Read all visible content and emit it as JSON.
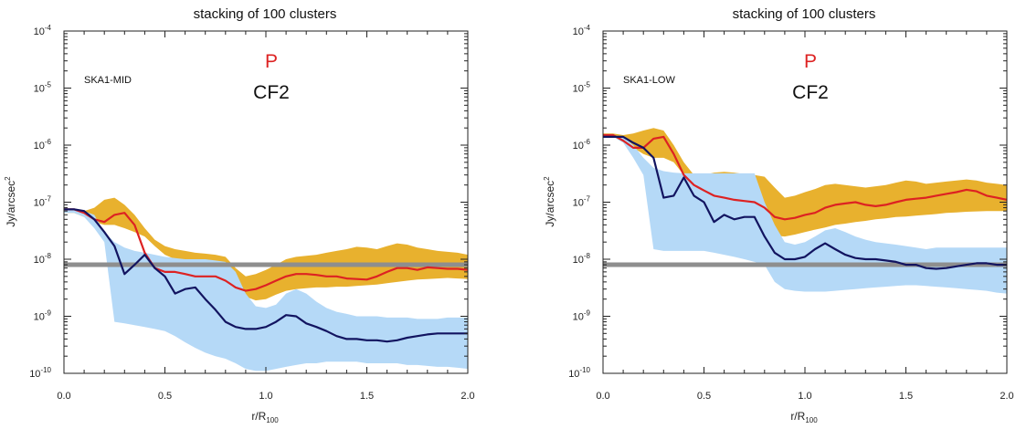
{
  "colors": {
    "model_band": "#E8B12E",
    "noise_band": "#B5D9F7",
    "polarized_line": "#DD2222",
    "total_line": "#121460",
    "threshold": "#8E8E8E",
    "annotation_p": "#DD2222"
  },
  "chart_data": [
    {
      "type": "line",
      "title": "stacking of 100 clusters",
      "instrument": "SKA1-MID",
      "annotation_p": "P",
      "annotation_cf": "CF2",
      "xlabel": "r/R",
      "xlabel_sub": "100",
      "ylabel": "Jy/arcsec",
      "ylabel_sup": "2",
      "xlim": [
        0,
        2
      ],
      "ylim": [
        1e-10,
        0.0001
      ],
      "yscale": "log",
      "xticks": [
        "0.0",
        "0.5",
        "1.0",
        "1.5",
        "2.0"
      ],
      "yticks": [
        {
          "base": "10",
          "exp": "-10"
        },
        {
          "base": "10",
          "exp": "-9"
        },
        {
          "base": "10",
          "exp": "-8"
        },
        {
          "base": "10",
          "exp": "-7"
        },
        {
          "base": "10",
          "exp": "-6"
        },
        {
          "base": "10",
          "exp": "-5"
        },
        {
          "base": "10",
          "exp": "-4"
        }
      ],
      "threshold": 8e-09,
      "x": [
        0.0,
        0.05,
        0.1,
        0.15,
        0.2,
        0.25,
        0.3,
        0.35,
        0.4,
        0.45,
        0.5,
        0.55,
        0.6,
        0.65,
        0.7,
        0.75,
        0.8,
        0.85,
        0.9,
        0.95,
        1.0,
        1.05,
        1.1,
        1.15,
        1.2,
        1.25,
        1.3,
        1.35,
        1.4,
        1.45,
        1.5,
        1.55,
        1.6,
        1.65,
        1.7,
        1.75,
        1.8,
        1.85,
        1.9,
        1.95,
        2.0
      ],
      "bands": [
        {
          "role": "model_band",
          "upper": [
            7.5e-08,
            7.5e-08,
            7e-08,
            8e-08,
            1.1e-07,
            1.2e-07,
            9e-08,
            6e-08,
            3.5e-08,
            2.2e-08,
            1.7e-08,
            1.5e-08,
            1.4e-08,
            1.3e-08,
            1.25e-08,
            1.2e-08,
            1.1e-08,
            7e-09,
            5e-09,
            5.5e-09,
            6.5e-09,
            8e-09,
            1e-08,
            1.1e-08,
            1.15e-08,
            1.2e-08,
            1.3e-08,
            1.4e-08,
            1.5e-08,
            1.65e-08,
            1.6e-08,
            1.5e-08,
            1.7e-08,
            1.9e-08,
            1.8e-08,
            1.6e-08,
            1.5e-08,
            1.4e-08,
            1.35e-08,
            1.3e-08,
            1.2e-08
          ],
          "lower": [
            6.5e-08,
            6.5e-08,
            5.5e-08,
            4.5e-08,
            4e-08,
            4e-08,
            3.5e-08,
            3e-08,
            2.5e-08,
            1.7e-08,
            1.2e-08,
            1e-08,
            9e-09,
            8e-09,
            7e-09,
            6.5e-09,
            5.5e-09,
            3.5e-09,
            2.2e-09,
            1.9e-09,
            2e-09,
            2.4e-09,
            2.8e-09,
            3e-09,
            3.1e-09,
            3.2e-09,
            3.2e-09,
            3.3e-09,
            3.3e-09,
            3.4e-09,
            3.5e-09,
            3.6e-09,
            3.8e-09,
            4e-09,
            4.2e-09,
            4.4e-09,
            4.5e-09,
            4.6e-09,
            4.7e-09,
            4.6e-09,
            4.5e-09
          ]
        },
        {
          "role": "noise_band",
          "upper": [
            7.5e-08,
            7.5e-08,
            7e-08,
            6e-08,
            3e-08,
            2e-08,
            1.6e-08,
            1.4e-08,
            1.3e-08,
            1.2e-08,
            1.1e-08,
            1.05e-08,
            1e-08,
            1e-08,
            1e-08,
            9.5e-09,
            9e-09,
            6e-09,
            2.5e-09,
            1.5e-09,
            1.4e-09,
            1.6e-09,
            2.5e-09,
            3e-09,
            2.5e-09,
            1.8e-09,
            1.4e-09,
            1.2e-09,
            1.1e-09,
            1e-09,
            1e-09,
            1e-09,
            9.5e-10,
            9.5e-10,
            9.5e-10,
            9e-10,
            9e-10,
            9e-10,
            9.5e-10,
            9.5e-10,
            9.5e-10
          ],
          "lower": [
            6.5e-08,
            6.5e-08,
            5.5e-08,
            3.5e-08,
            2e-08,
            8e-10,
            7.5e-10,
            7e-10,
            6.5e-10,
            6e-10,
            5.5e-10,
            4.5e-10,
            3.5e-10,
            2.8e-10,
            2.3e-10,
            2e-10,
            1.8e-10,
            1.5e-10,
            1.2e-10,
            1.1e-10,
            1.1e-10,
            1.2e-10,
            1.3e-10,
            1.4e-10,
            1.5e-10,
            1.5e-10,
            1.6e-10,
            1.6e-10,
            1.6e-10,
            1.6e-10,
            1.5e-10,
            1.5e-10,
            1.5e-10,
            1.5e-10,
            1.4e-10,
            1.4e-10,
            1.35e-10,
            1.3e-10,
            1.3e-10,
            1.25e-10,
            1.2e-10
          ]
        }
      ],
      "series": [
        {
          "role": "polarized_line",
          "values": [
            7.5e-08,
            7.5e-08,
            6.5e-08,
            5e-08,
            4.5e-08,
            6e-08,
            6.5e-08,
            4e-08,
            1.3e-08,
            7e-09,
            6e-09,
            6e-09,
            5.5e-09,
            5e-09,
            5e-09,
            5e-09,
            4.2e-09,
            3.2e-09,
            2.8e-09,
            3e-09,
            3.5e-09,
            4.2e-09,
            5e-09,
            5.5e-09,
            5.5e-09,
            5.3e-09,
            5e-09,
            5e-09,
            4.6e-09,
            4.5e-09,
            4.4e-09,
            5e-09,
            6e-09,
            7e-09,
            7e-09,
            6.5e-09,
            7.2e-09,
            7e-09,
            6.8e-09,
            6.8e-09,
            6.5e-09
          ]
        },
        {
          "role": "total_line",
          "values": [
            7.5e-08,
            7.5e-08,
            7e-08,
            5e-08,
            3e-08,
            1.7e-08,
            5.5e-09,
            8e-09,
            1.2e-08,
            7e-09,
            5e-09,
            2.5e-09,
            3e-09,
            3.2e-09,
            2e-09,
            1.3e-09,
            8e-10,
            6.5e-10,
            6e-10,
            6e-10,
            6.5e-10,
            8e-10,
            1.05e-09,
            1e-09,
            7.5e-10,
            6.5e-10,
            5.5e-10,
            4.5e-10,
            4e-10,
            4e-10,
            3.8e-10,
            3.8e-10,
            3.6e-10,
            3.8e-10,
            4.2e-10,
            4.5e-10,
            4.8e-10,
            5e-10,
            5e-10,
            5e-10,
            5e-10
          ]
        }
      ]
    },
    {
      "type": "line",
      "title": "stacking of 100 clusters",
      "instrument": "SKA1-LOW",
      "annotation_p": "P",
      "annotation_cf": "CF2",
      "xlabel": "r/R",
      "xlabel_sub": "100",
      "ylabel": "Jy/arcsec",
      "ylabel_sup": "2",
      "xlim": [
        0,
        2
      ],
      "ylim": [
        1e-10,
        0.0001
      ],
      "yscale": "log",
      "xticks": [
        "0.0",
        "0.5",
        "1.0",
        "1.5",
        "2.0"
      ],
      "yticks": [
        {
          "base": "10",
          "exp": "-10"
        },
        {
          "base": "10",
          "exp": "-9"
        },
        {
          "base": "10",
          "exp": "-8"
        },
        {
          "base": "10",
          "exp": "-7"
        },
        {
          "base": "10",
          "exp": "-6"
        },
        {
          "base": "10",
          "exp": "-5"
        },
        {
          "base": "10",
          "exp": "-4"
        }
      ],
      "threshold": 8e-09,
      "x": [
        0.0,
        0.05,
        0.1,
        0.15,
        0.2,
        0.25,
        0.3,
        0.35,
        0.4,
        0.45,
        0.5,
        0.55,
        0.6,
        0.65,
        0.7,
        0.75,
        0.8,
        0.85,
        0.9,
        0.95,
        1.0,
        1.05,
        1.1,
        1.15,
        1.2,
        1.25,
        1.3,
        1.35,
        1.4,
        1.45,
        1.5,
        1.55,
        1.6,
        1.65,
        1.7,
        1.75,
        1.8,
        1.85,
        1.9,
        1.95,
        2.0
      ],
      "bands": [
        {
          "role": "model_band",
          "upper": [
            1.6e-06,
            1.6e-06,
            1.5e-06,
            1.6e-06,
            1.8e-06,
            2e-06,
            1.8e-06,
            1e-06,
            5e-07,
            3e-07,
            3e-07,
            3.3e-07,
            3.4e-07,
            3.3e-07,
            3.1e-07,
            3e-07,
            2.8e-07,
            1.8e-07,
            1.2e-07,
            1.3e-07,
            1.5e-07,
            1.7e-07,
            2e-07,
            2.1e-07,
            2e-07,
            1.9e-07,
            1.8e-07,
            1.9e-07,
            2e-07,
            2.2e-07,
            2.4e-07,
            2.3e-07,
            2.1e-07,
            2.2e-07,
            2.3e-07,
            2.4e-07,
            2.5e-07,
            2.4e-07,
            2.2e-07,
            2.1e-07,
            2e-07
          ],
          "lower": [
            1.4e-06,
            1.4e-06,
            1.2e-06,
            9e-07,
            7e-07,
            6e-07,
            6e-07,
            5e-07,
            3e-07,
            1.5e-07,
            7e-08,
            5e-08,
            4e-08,
            3.5e-08,
            3.2e-08,
            3e-08,
            2.8e-08,
            2.6e-08,
            2.5e-08,
            2.7e-08,
            3e-08,
            3.3e-08,
            3.6e-08,
            4e-08,
            4.2e-08,
            4.5e-08,
            4.7e-08,
            5e-08,
            5.2e-08,
            5.5e-08,
            5.6e-08,
            5.8e-08,
            6e-08,
            6.2e-08,
            6.5e-08,
            6.6e-08,
            6.8e-08,
            6.9e-08,
            7e-08,
            7e-08,
            7e-08
          ]
        },
        {
          "role": "noise_band",
          "upper": [
            1.5e-06,
            1.5e-06,
            1.4e-06,
            1e-06,
            6e-07,
            4e-07,
            3.5e-07,
            3.3e-07,
            3.2e-07,
            3.2e-07,
            3.2e-07,
            3.2e-07,
            3.2e-07,
            3.2e-07,
            3.2e-07,
            3.2e-07,
            1e-07,
            4e-08,
            2e-08,
            1.8e-08,
            2e-08,
            2.5e-08,
            3.2e-08,
            3.5e-08,
            3e-08,
            2.5e-08,
            2.2e-08,
            2e-08,
            1.9e-08,
            1.8e-08,
            1.7e-08,
            1.6e-08,
            1.5e-08,
            1.6e-08,
            1.6e-08,
            1.6e-08,
            1.6e-08,
            1.6e-08,
            1.6e-08,
            1.6e-08,
            1.6e-08
          ],
          "lower": [
            1.4e-06,
            1.4e-06,
            1.1e-06,
            6e-07,
            3e-07,
            1.5e-08,
            1.4e-08,
            1.4e-08,
            1.4e-08,
            1.4e-08,
            1.4e-08,
            1.3e-08,
            1.2e-08,
            1.1e-08,
            1e-08,
            9e-09,
            8e-09,
            4e-09,
            3e-09,
            2.8e-09,
            2.7e-09,
            2.7e-09,
            2.7e-09,
            2.8e-09,
            2.9e-09,
            3e-09,
            3.1e-09,
            3.2e-09,
            3.3e-09,
            3.4e-09,
            3.5e-09,
            3.5e-09,
            3.4e-09,
            3.3e-09,
            3.2e-09,
            3.1e-09,
            3e-09,
            2.9e-09,
            2.8e-09,
            2.6e-09,
            2.5e-09
          ]
        }
      ],
      "series": [
        {
          "role": "polarized_line",
          "values": [
            1.5e-06,
            1.5e-06,
            1.2e-06,
            9e-07,
            9e-07,
            1.3e-06,
            1.4e-06,
            7e-07,
            3e-07,
            2e-07,
            1.6e-07,
            1.3e-07,
            1.2e-07,
            1.1e-07,
            1.05e-07,
            1e-07,
            8e-08,
            5.5e-08,
            5e-08,
            5.3e-08,
            6e-08,
            6.5e-08,
            8e-08,
            9e-08,
            9.5e-08,
            1e-07,
            9e-08,
            8.5e-08,
            9e-08,
            1e-07,
            1.1e-07,
            1.15e-07,
            1.2e-07,
            1.3e-07,
            1.4e-07,
            1.5e-07,
            1.65e-07,
            1.55e-07,
            1.3e-07,
            1.2e-07,
            1.1e-07
          ]
        },
        {
          "role": "total_line",
          "values": [
            1.4e-06,
            1.4e-06,
            1.4e-06,
            1.1e-06,
            9e-07,
            6e-07,
            1.2e-07,
            1.3e-07,
            2.7e-07,
            1.3e-07,
            1e-07,
            4.5e-08,
            6e-08,
            5e-08,
            5.5e-08,
            5.5e-08,
            2.5e-08,
            1.3e-08,
            1e-08,
            1e-08,
            1.1e-08,
            1.5e-08,
            1.9e-08,
            1.5e-08,
            1.2e-08,
            1.05e-08,
            1e-08,
            1e-08,
            9.5e-09,
            9e-09,
            8e-09,
            8e-09,
            7e-09,
            6.8e-09,
            7e-09,
            7.5e-09,
            8e-09,
            8.5e-09,
            8.5e-09,
            8e-09,
            8e-09
          ]
        }
      ]
    }
  ]
}
